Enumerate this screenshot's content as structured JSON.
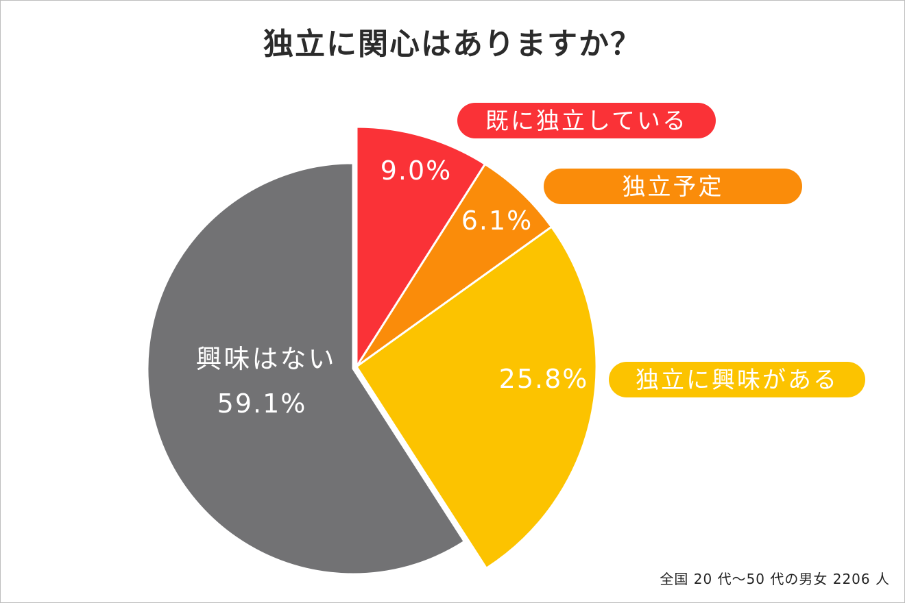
{
  "title": "独立に関心はありますか？",
  "footnote": "全国 20 代〜50 代の男女 2206 人",
  "chart_data": {
    "type": "pie",
    "title": "独立に関心はありますか？",
    "start_angle_deg": 0,
    "direction": "clockwise",
    "slices": [
      {
        "label": "既に独立している",
        "value": 9.0,
        "value_label": "9.0%",
        "color": "#fa3237",
        "legend_style": "pill",
        "exploded": true
      },
      {
        "label": "独立予定",
        "value": 6.1,
        "value_label": "6.1%",
        "color": "#fa8c0a",
        "legend_style": "pill",
        "exploded": true
      },
      {
        "label": "独立に興味がある",
        "value": 25.8,
        "value_label": "25.8%",
        "color": "#fcc300",
        "legend_style": "pill",
        "exploded": true
      },
      {
        "label": "興味はない",
        "value": 59.1,
        "value_label": "59.1%",
        "color": "#727274",
        "legend_style": "inside",
        "exploded": false
      }
    ]
  }
}
